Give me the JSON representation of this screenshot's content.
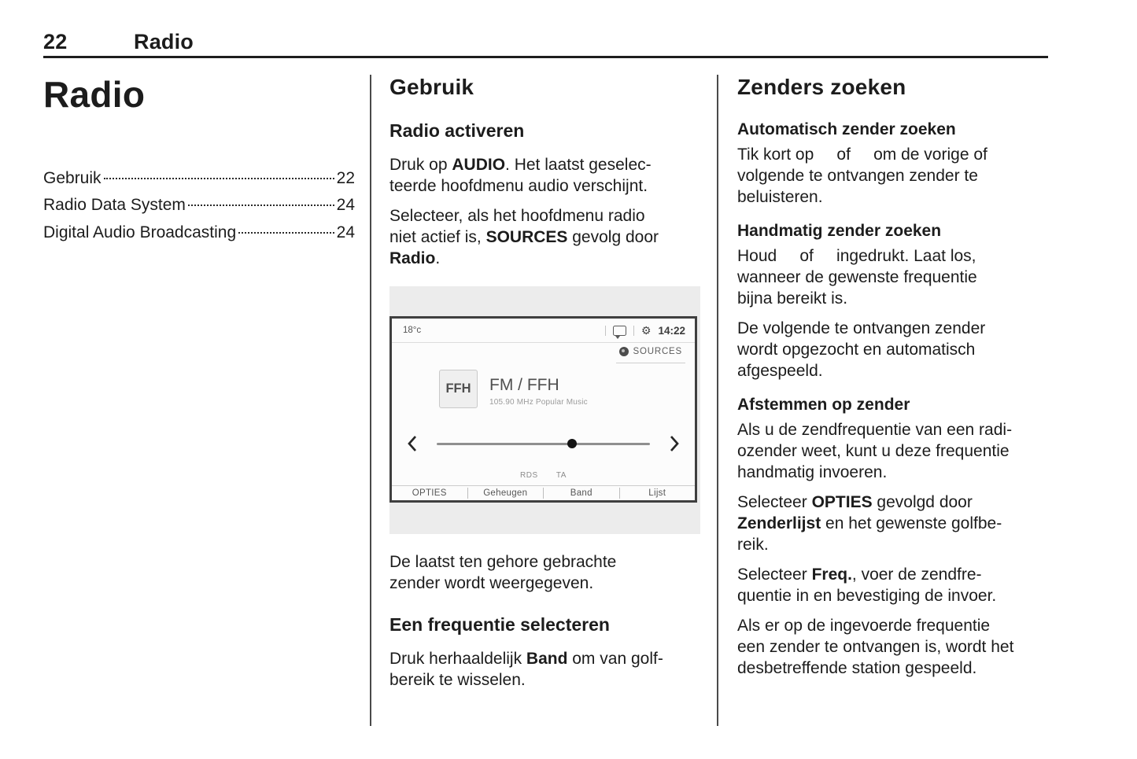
{
  "header": {
    "page_number": "22",
    "section": "Radio"
  },
  "toc": {
    "title": "Radio",
    "items": [
      {
        "label": "Gebruik",
        "page": "22"
      },
      {
        "label": "Radio Data System",
        "page": "24"
      },
      {
        "label": "Digital Audio Broadcasting",
        "page": "24"
      }
    ]
  },
  "usage": {
    "heading": "Gebruik",
    "activate_heading": "Radio activeren",
    "activate_p1": "Druk op **AUDIO**. Het laatst geselec-\nteerde hoofdmenu audio verschijnt.",
    "activate_p2": "Selecteer, als het hoofdmenu radio\nniet actief is, **SOURCES** gevolg door\n**Radio**.",
    "figure_caption": "De laatst ten gehore gebrachte\nzender wordt weergegeven.",
    "frequency_heading": "Een frequentie selecteren",
    "frequency_p": "Druk herhaaldelijk **Band** om van golf-\nbereik te wisselen."
  },
  "screen": {
    "temperature": "18°c",
    "gear_glyph": "⚙",
    "time": "14:22",
    "sources_label": "SOURCES",
    "preset_label": "FFH",
    "station_name": "FM / FFH",
    "station_detail": "105.90 MHz  Popular Music",
    "rds_label": "RDS",
    "ta_label": "TA",
    "menu_items": [
      "OPTIES",
      "Geheugen",
      "Band",
      "Lijst"
    ],
    "slider_position_pct": 63.5,
    "icons": [
      "message-bubble-icon",
      "gear-icon",
      "sources-dot-icon",
      "chevron-left-icon",
      "chevron-right-icon"
    ]
  },
  "search": {
    "heading": "Zenders zoeken",
    "auto_heading": "Automatisch zender zoeken",
    "auto_p": "Tik kort op     of     om de vorige of\nvolgende te ontvangen zender te\nbeluisteren.",
    "manual_heading": "Handmatig zender zoeken",
    "manual_p1": "Houd     of     ingedrukt. Laat los,\nwanneer de gewenste frequentie\nbijna bereikt is.",
    "manual_p2": "De volgende te ontvangen zender\nwordt opgezocht en automatisch\nafgespeeld.",
    "tune_heading": "Afstemmen op zender",
    "tune_p1": "Als u de zendfrequentie van een radi-\nozender weet, kunt u deze frequentie\nhandmatig invoeren.",
    "tune_p2": "Selecteer **OPTIES** gevolgd door\n**Zenderlijst** en het gewenste golfbe-\nreik.",
    "tune_p3": "Selecteer **Freq.**, voer de zendfre-\nquentie in en bevestiging de invoer.",
    "tune_p4": "Als er op de ingevoerde frequentie\neen zender te ontvangen is, wordt het\ndesbetreffende station gespeeld."
  }
}
